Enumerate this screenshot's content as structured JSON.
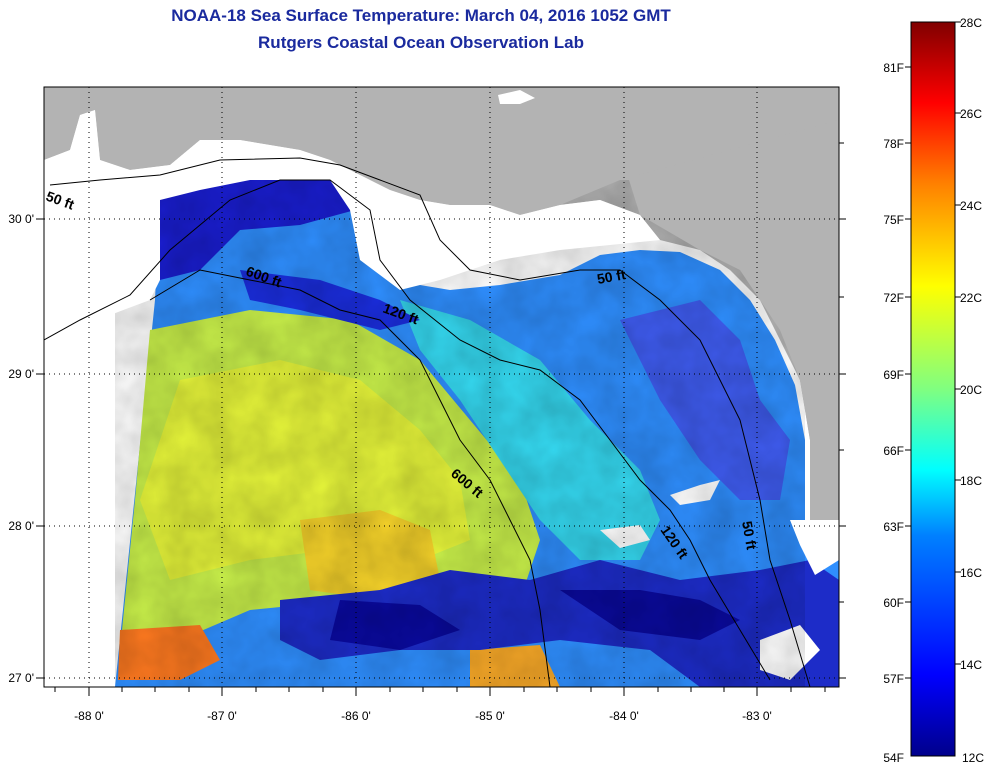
{
  "title": "NOAA-18 Sea Surface Temperature:  March 04, 2016 1052 GMT",
  "subtitle": "Rutgers Coastal Ocean Observation Lab",
  "map": {
    "lon_ticks": [
      "-88 0'",
      "-87 0'",
      "-86 0'",
      "-85 0'",
      "-84 0'",
      "-83 0'"
    ],
    "lat_ticks": [
      "30 0'",
      "29 0'",
      "28 0'",
      "27 0'"
    ],
    "contour_labels": [
      "50 ft",
      "600 ft",
      "120 ft",
      "50 ft",
      "600 ft",
      "120 ft",
      "50 ft"
    ],
    "colors": {
      "land": "#ffffff",
      "no_data": "#b3b3b3"
    }
  },
  "colorbar": {
    "celsius": [
      "28C",
      "26C",
      "24C",
      "22C",
      "20C",
      "18C",
      "16C",
      "14C",
      "12C"
    ],
    "fahrenheit": [
      "81F",
      "78F",
      "75F",
      "72F",
      "69F",
      "66F",
      "63F",
      "60F",
      "57F",
      "54F"
    ],
    "colors": [
      "#00008b",
      "#0000ff",
      "#0080ff",
      "#00ffff",
      "#80ff80",
      "#ffff00",
      "#ff8000",
      "#ff0000",
      "#800000"
    ]
  }
}
